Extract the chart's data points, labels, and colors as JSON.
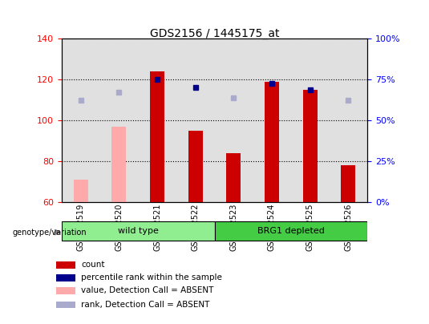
{
  "title": "GDS2156 / 1445175_at",
  "samples": [
    "GSM122519",
    "GSM122520",
    "GSM122521",
    "GSM122522",
    "GSM122523",
    "GSM122524",
    "GSM122525",
    "GSM122526"
  ],
  "bar_values": [
    null,
    null,
    124,
    95,
    84,
    119,
    115,
    78
  ],
  "bar_absent_values": [
    71,
    97,
    null,
    null,
    null,
    null,
    null,
    null
  ],
  "rank_values": [
    null,
    null,
    120,
    116,
    null,
    118,
    115,
    null
  ],
  "rank_absent_values": [
    110,
    114,
    null,
    null,
    111,
    null,
    null,
    110
  ],
  "ylim_left": [
    60,
    140
  ],
  "yticks_left": [
    60,
    80,
    100,
    120,
    140
  ],
  "yticks_right": [
    0,
    25,
    50,
    75,
    100
  ],
  "yticklabels_right": [
    "0%",
    "25%",
    "50%",
    "75%",
    "100%"
  ],
  "bar_color": "#cc0000",
  "bar_absent_color": "#ffaaaa",
  "rank_color": "#00008b",
  "rank_absent_color": "#aaaacc",
  "groups": [
    {
      "label": "wild type",
      "samples": [
        0,
        1,
        2,
        3
      ],
      "color": "#90ee90"
    },
    {
      "label": "BRG1 depleted",
      "samples": [
        4,
        5,
        6,
        7
      ],
      "color": "#44cc44"
    }
  ],
  "genotype_label": "genotype/variation",
  "legend_items": [
    {
      "label": "count",
      "color": "#cc0000"
    },
    {
      "label": "percentile rank within the sample",
      "color": "#00008b"
    },
    {
      "label": "value, Detection Call = ABSENT",
      "color": "#ffaaaa"
    },
    {
      "label": "rank, Detection Call = ABSENT",
      "color": "#aaaacc"
    }
  ]
}
